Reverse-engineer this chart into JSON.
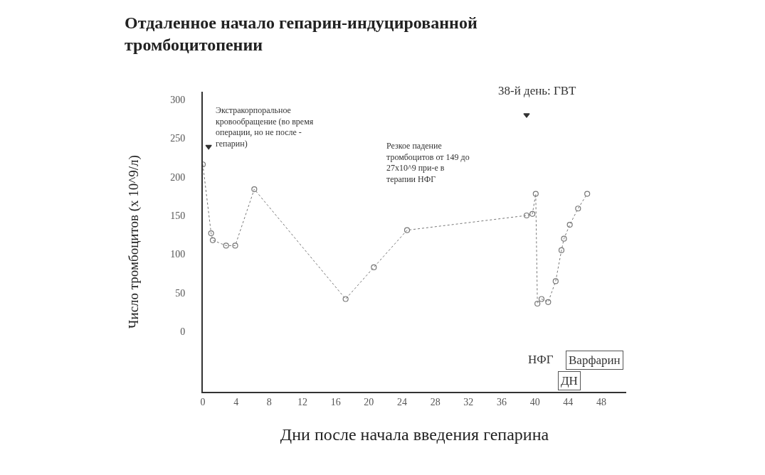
{
  "chart_data": {
    "type": "line",
    "title": "Отдаленное начало гепарин-индуцированной тромбоцитопении",
    "xlabel": "Дни после начала введения гепарина",
    "ylabel": "Число тромбоцитов (х 10^9/л)",
    "xlim": [
      0,
      51
    ],
    "ylim": [
      -78,
      310
    ],
    "xticks": [
      {
        "value": 0,
        "label": "0"
      },
      4,
      8,
      12,
      16,
      20,
      24,
      28,
      32,
      36,
      40,
      44,
      48
    ],
    "yticks": [
      0,
      50,
      100,
      150,
      200,
      250,
      300
    ],
    "series": [
      {
        "color": "#777777",
        "marker": "circle",
        "line_style": "dotted",
        "x": [
          0,
          1,
          1.2,
          2.8,
          3.9,
          6.2,
          17.2,
          20.6,
          24.6,
          39,
          39.7,
          40.1,
          40.3,
          40.8,
          41.6,
          42.5,
          43.2,
          43.5,
          44.2,
          45.2,
          46.3
        ],
        "values": [
          216,
          127,
          118,
          111,
          111,
          184,
          42,
          83,
          131,
          150,
          152,
          178,
          36,
          42,
          38,
          65,
          105,
          120,
          138,
          159,
          178
        ]
      },
      {
        "type": "scatter",
        "color": "#333333",
        "marker": "triangle",
        "x": [
          0.7,
          39
        ],
        "values": [
          239,
          280
        ]
      }
    ],
    "annotations": [
      "Экстракорпоральное кровообращение (во время операции, но не после - гепарин)",
      "Резкое падение тромбоцитов от 149 до 27x10^9 при-е в терапии НФГ",
      "38-й день: ГВТ",
      "НФГ",
      "Варфарин",
      "ДН"
    ]
  }
}
